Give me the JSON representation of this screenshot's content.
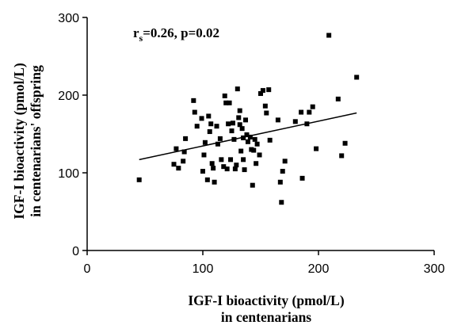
{
  "chart_data": {
    "type": "scatter",
    "title": "",
    "xlabel": [
      "IGF-I bioactivity (pmol/L)",
      "in centenarians"
    ],
    "ylabel": [
      "IGF-I bioactivity (pmol/L)",
      "in centenarians' offspring"
    ],
    "xlim": [
      0,
      300
    ],
    "ylim": [
      0,
      300
    ],
    "xticks": [
      0,
      100,
      200,
      300
    ],
    "yticks": [
      0,
      100,
      200,
      300
    ],
    "xtick_labels": [
      "0",
      "100",
      "200",
      "300"
    ],
    "ytick_labels": [
      "0",
      "100",
      "200",
      "300"
    ],
    "grid": false,
    "annotation": {
      "r_symbol": "r",
      "r_subscript": "s",
      "text": "=0.26, p=0.02"
    },
    "regression_line": {
      "x": [
        45,
        233
      ],
      "y": [
        117,
        177
      ]
    },
    "points": [
      {
        "x": 45,
        "y": 91
      },
      {
        "x": 75,
        "y": 111
      },
      {
        "x": 77,
        "y": 131
      },
      {
        "x": 79,
        "y": 106
      },
      {
        "x": 83,
        "y": 115
      },
      {
        "x": 84,
        "y": 127
      },
      {
        "x": 85,
        "y": 144
      },
      {
        "x": 92,
        "y": 193
      },
      {
        "x": 93,
        "y": 178
      },
      {
        "x": 95,
        "y": 160
      },
      {
        "x": 99,
        "y": 170
      },
      {
        "x": 100,
        "y": 102
      },
      {
        "x": 101,
        "y": 123
      },
      {
        "x": 102,
        "y": 139
      },
      {
        "x": 104,
        "y": 91
      },
      {
        "x": 105,
        "y": 173
      },
      {
        "x": 106,
        "y": 153
      },
      {
        "x": 107,
        "y": 163
      },
      {
        "x": 108,
        "y": 112
      },
      {
        "x": 109,
        "y": 106
      },
      {
        "x": 110,
        "y": 88
      },
      {
        "x": 112,
        "y": 160
      },
      {
        "x": 113,
        "y": 137
      },
      {
        "x": 115,
        "y": 144
      },
      {
        "x": 116,
        "y": 117
      },
      {
        "x": 118,
        "y": 108
      },
      {
        "x": 119,
        "y": 199
      },
      {
        "x": 120,
        "y": 190
      },
      {
        "x": 121,
        "y": 105
      },
      {
        "x": 122,
        "y": 163
      },
      {
        "x": 123,
        "y": 190
      },
      {
        "x": 124,
        "y": 117
      },
      {
        "x": 125,
        "y": 154
      },
      {
        "x": 126,
        "y": 164
      },
      {
        "x": 127,
        "y": 143
      },
      {
        "x": 128,
        "y": 105
      },
      {
        "x": 129,
        "y": 110
      },
      {
        "x": 130,
        "y": 208
      },
      {
        "x": 131,
        "y": 171
      },
      {
        "x": 132,
        "y": 180
      },
      {
        "x": 132,
        "y": 162
      },
      {
        "x": 133,
        "y": 128
      },
      {
        "x": 134,
        "y": 157
      },
      {
        "x": 135,
        "y": 145
      },
      {
        "x": 135,
        "y": 117
      },
      {
        "x": 136,
        "y": 104
      },
      {
        "x": 137,
        "y": 168
      },
      {
        "x": 138,
        "y": 149
      },
      {
        "x": 139,
        "y": 140
      },
      {
        "x": 141,
        "y": 146
      },
      {
        "x": 142,
        "y": 130
      },
      {
        "x": 143,
        "y": 84
      },
      {
        "x": 144,
        "y": 129
      },
      {
        "x": 145,
        "y": 143
      },
      {
        "x": 146,
        "y": 112
      },
      {
        "x": 147,
        "y": 137
      },
      {
        "x": 149,
        "y": 123
      },
      {
        "x": 150,
        "y": 202
      },
      {
        "x": 152,
        "y": 206
      },
      {
        "x": 154,
        "y": 186
      },
      {
        "x": 155,
        "y": 177
      },
      {
        "x": 157,
        "y": 207
      },
      {
        "x": 158,
        "y": 142
      },
      {
        "x": 165,
        "y": 168
      },
      {
        "x": 167,
        "y": 88
      },
      {
        "x": 168,
        "y": 62
      },
      {
        "x": 169,
        "y": 102
      },
      {
        "x": 171,
        "y": 115
      },
      {
        "x": 180,
        "y": 166
      },
      {
        "x": 185,
        "y": 178
      },
      {
        "x": 186,
        "y": 93
      },
      {
        "x": 190,
        "y": 163
      },
      {
        "x": 192,
        "y": 178
      },
      {
        "x": 195,
        "y": 185
      },
      {
        "x": 198,
        "y": 131
      },
      {
        "x": 209,
        "y": 277
      },
      {
        "x": 217,
        "y": 195
      },
      {
        "x": 220,
        "y": 122
      },
      {
        "x": 223,
        "y": 138
      },
      {
        "x": 233,
        "y": 223
      }
    ],
    "marker": {
      "shape": "square",
      "color": "#000000"
    },
    "line_color": "#000000"
  }
}
